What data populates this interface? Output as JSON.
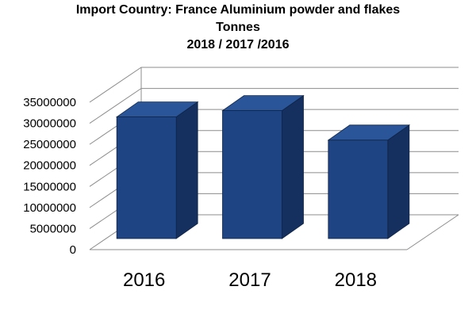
{
  "chart_data": {
    "type": "bar",
    "title_lines": [
      "Import Country: France Aluminium powder and flakes",
      "Tonnes",
      "2018 / 2017 /2016"
    ],
    "categories": [
      "2016",
      "2017",
      "2018"
    ],
    "values": [
      31500000,
      33000000,
      26000000
    ],
    "yticks": [
      "0",
      "5000000",
      "10000000",
      "15000000",
      "20000000",
      "25000000",
      "30000000",
      "35000000"
    ],
    "ylim": [
      0,
      35000000
    ],
    "grid": true,
    "legend": "none",
    "style": "3d-column",
    "colors": {
      "front": "#1f4483",
      "side": "#15305e",
      "top": "#2a5599",
      "grid": "#8c8c8c"
    }
  }
}
